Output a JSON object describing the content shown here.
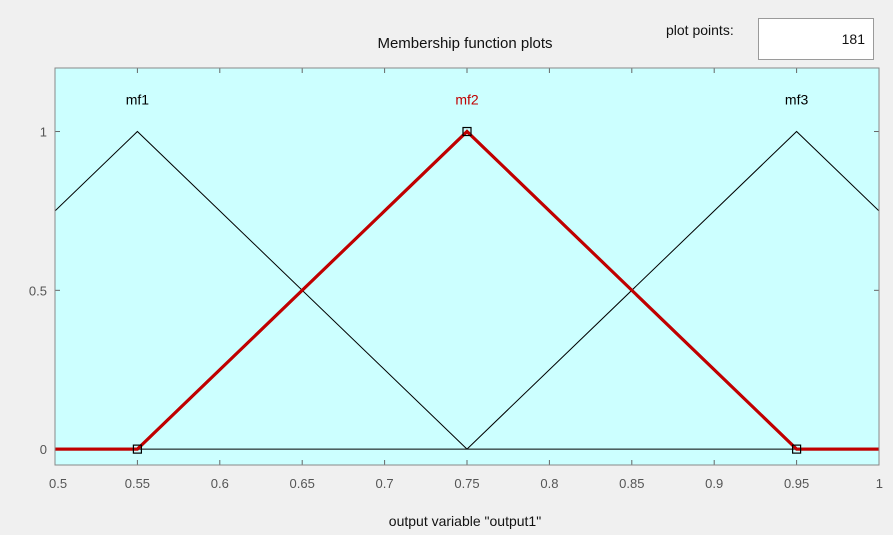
{
  "window": {
    "plot_title": "Membership function plots",
    "plot_points_label": "plot points:",
    "plot_points_value": "181"
  },
  "colors": {
    "plot_background": "#ccffff",
    "selected_mf": "#c00000",
    "unselected_mf": "#000000"
  },
  "chart_data": {
    "type": "line",
    "title": "Membership function plots",
    "xlabel": "output variable \"output1\"",
    "ylabel": "",
    "xlim": [
      0.5,
      1
    ],
    "ylim": [
      -0.05,
      1.2
    ],
    "x_ticks": [
      "0.5",
      "0.55",
      "0.6",
      "0.65",
      "0.7",
      "0.75",
      "0.8",
      "0.85",
      "0.9",
      "0.95",
      "1"
    ],
    "y_ticks": [
      "0",
      "0.5",
      "1"
    ],
    "grid": false,
    "series": [
      {
        "name": "mf1",
        "selected": false,
        "x": [
          0.35,
          0.55,
          0.75
        ],
        "y": [
          0,
          1,
          0
        ]
      },
      {
        "name": "mf2",
        "selected": true,
        "x": [
          0.5,
          0.55,
          0.75,
          0.95,
          1
        ],
        "y": [
          0,
          0,
          1,
          0,
          0
        ]
      },
      {
        "name": "mf3",
        "selected": false,
        "x": [
          0.75,
          0.95,
          1.15
        ],
        "y": [
          0,
          1,
          0
        ]
      }
    ],
    "handles": [
      {
        "x": 0.55,
        "y": 0
      },
      {
        "x": 0.75,
        "y": 1
      },
      {
        "x": 0.95,
        "y": 0
      }
    ]
  }
}
